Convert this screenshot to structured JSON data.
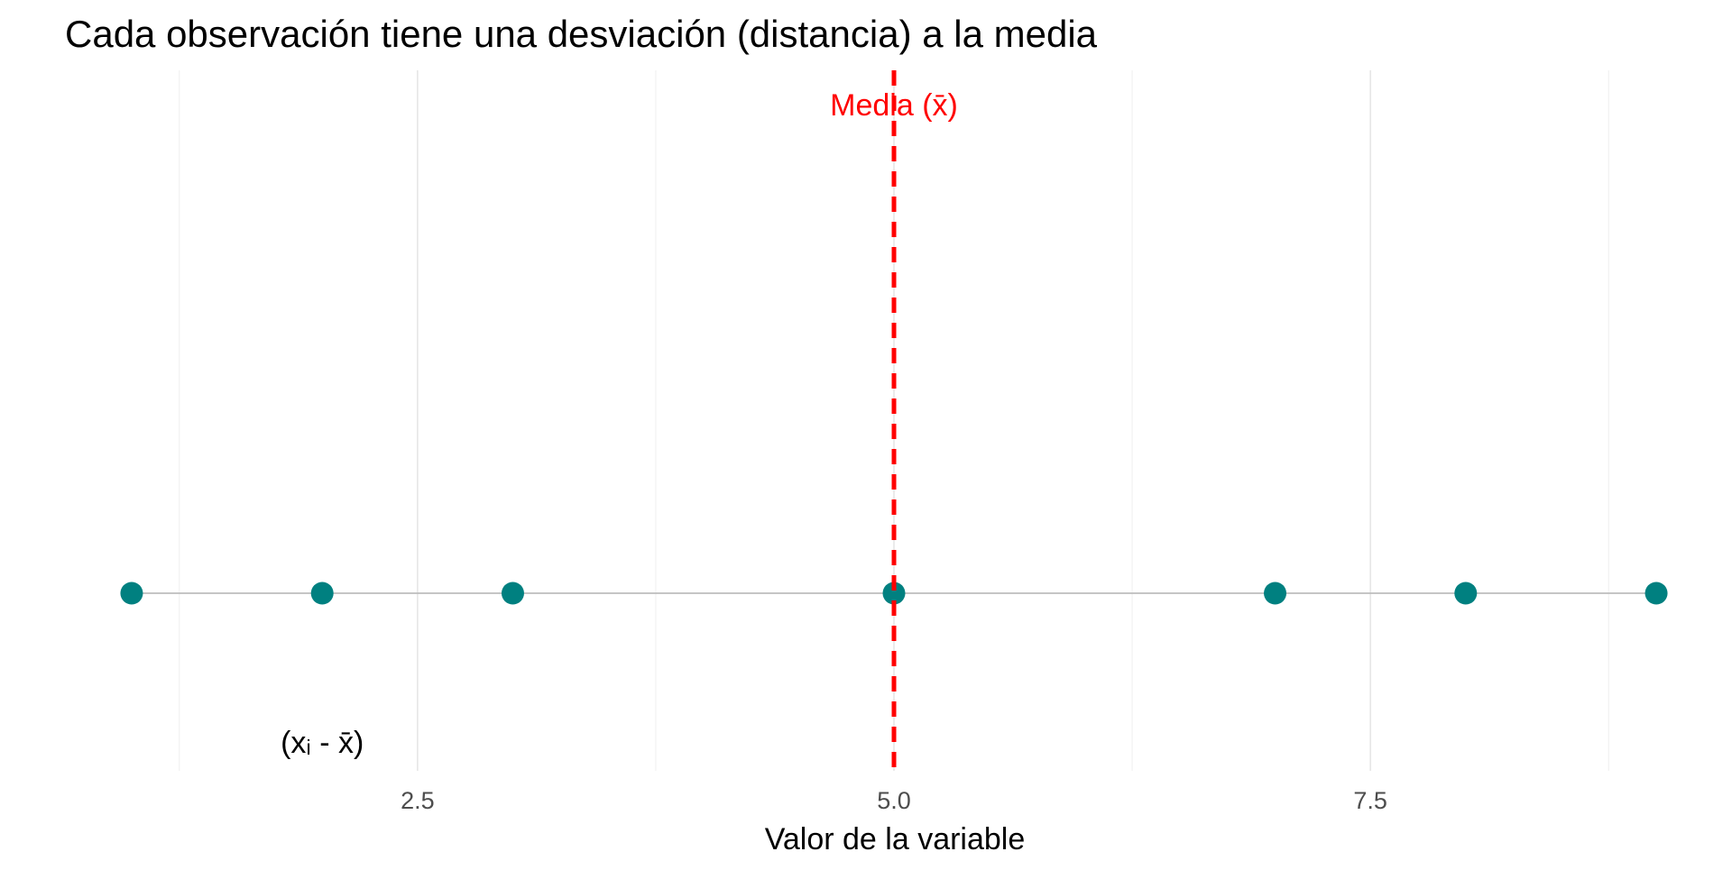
{
  "chart_data": {
    "type": "scatter",
    "title": "Cada observación tiene una desviación (distancia) a la media",
    "xlabel": "Valor de la variable",
    "ylabel": "",
    "xlim": [
      0.65,
      9.35
    ],
    "x_ticks": [
      2.5,
      5.0,
      7.5
    ],
    "x_tick_labels": [
      "2.5",
      "5.0",
      "7.5"
    ],
    "grid": true,
    "points": {
      "x": [
        1,
        2,
        3,
        5,
        7,
        8,
        9
      ],
      "color": "#008080"
    },
    "baseline_color": "#bdbdbd",
    "mean": {
      "value": 5,
      "label": "Media (x̄)",
      "color": "#ff0000",
      "style": "dashed"
    },
    "annotations": [
      {
        "text": "(xᵢ - x̄)",
        "x": 2.0
      }
    ]
  }
}
